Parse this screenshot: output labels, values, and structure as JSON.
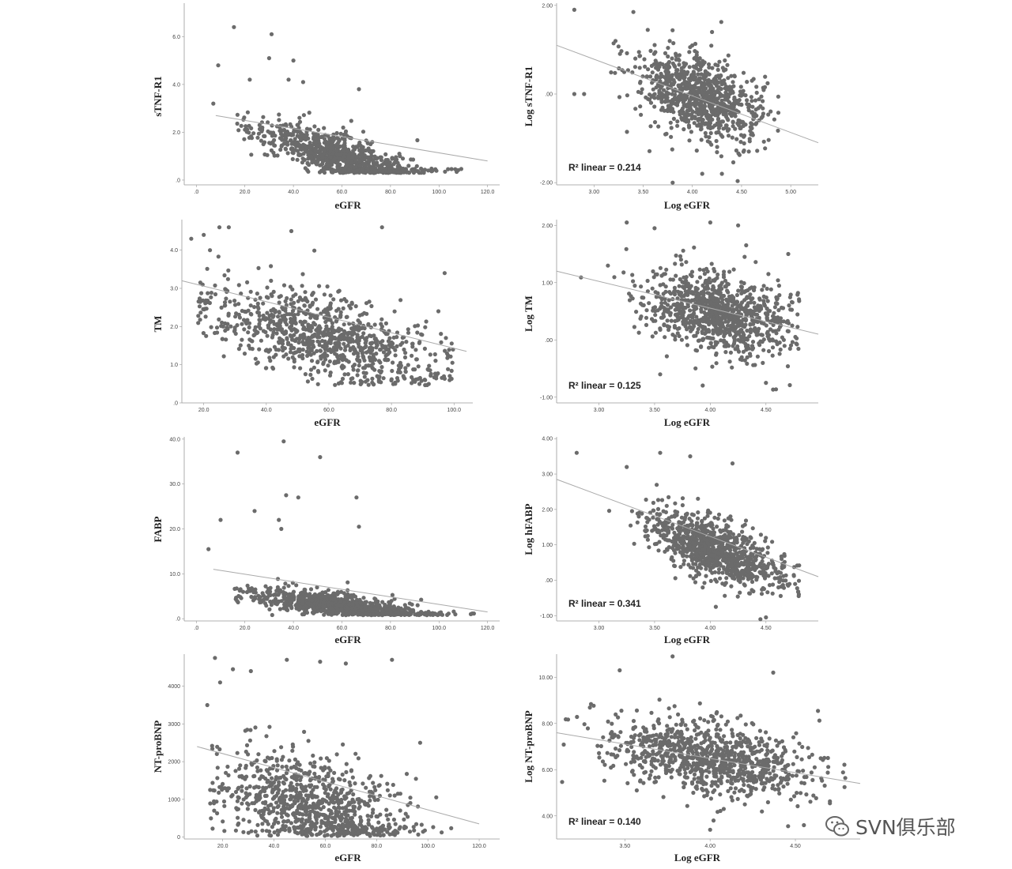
{
  "chart_data": [
    {
      "type": "scatter",
      "xlabel": "eGFR",
      "ylabel": "sTNF-R1",
      "xlim": [
        -5,
        125
      ],
      "ylim": [
        -0.2,
        7.4
      ],
      "xticks": [
        0,
        20,
        40,
        60,
        80,
        100,
        120
      ],
      "xtick_labels": [
        ".0",
        "20.0",
        "40.0",
        "60.0",
        "80.0",
        "100.0",
        "120.0"
      ],
      "yticks": [
        0,
        2,
        4,
        6
      ],
      "ytick_labels": [
        ".0",
        "2.0",
        "4.0",
        "6.0"
      ],
      "fit_line": {
        "x": [
          8,
          120
        ],
        "y": [
          2.7,
          0.8
        ]
      },
      "r2": "",
      "points": {
        "n": 900,
        "x_range": [
          15,
          110
        ],
        "x_mean": 60,
        "x_sd": 17,
        "y_intercept": 2.9,
        "y_slope": -0.033,
        "y_floor": 0.3,
        "y_noise": 0.45,
        "seed": 11
      },
      "outliers": [
        [
          15.5,
          6.4
        ],
        [
          31.0,
          6.1
        ],
        [
          30.0,
          5.1
        ],
        [
          40.0,
          5.0
        ],
        [
          9.0,
          4.8
        ],
        [
          38.0,
          4.2
        ],
        [
          44.0,
          4.1
        ],
        [
          22.0,
          4.2
        ],
        [
          67.0,
          3.8
        ],
        [
          7.0,
          3.2
        ]
      ]
    },
    {
      "type": "scatter",
      "xlabel": "Log eGFR",
      "ylabel": "Log sTNF-R1",
      "xlim": [
        2.62,
        5.28
      ],
      "ylim": [
        -2.05,
        2.05
      ],
      "xticks": [
        3.0,
        3.5,
        4.0,
        4.5,
        5.0
      ],
      "xtick_labels": [
        "3.00",
        "3.50",
        "4.00",
        "4.50",
        "5.00"
      ],
      "yticks": [
        -2,
        0,
        2
      ],
      "ytick_labels": [
        "-2.00",
        ".00",
        "2.00"
      ],
      "fit_line": {
        "x": [
          2.62,
          5.28
        ],
        "y": [
          1.1,
          -1.1
        ]
      },
      "r2": "R² linear = 0.214",
      "points": {
        "n": 900,
        "x_range": [
          3.0,
          4.9
        ],
        "x_mean": 4.1,
        "x_sd": 0.3,
        "y_intercept": 3.1,
        "y_slope": -0.78,
        "y_floor": -2.0,
        "y_noise": 0.45,
        "seed": 21
      },
      "outliers": [
        [
          2.8,
          1.9
        ],
        [
          3.4,
          1.85
        ],
        [
          2.8,
          0.0
        ],
        [
          2.9,
          0.0
        ],
        [
          3.8,
          -2.0
        ],
        [
          4.2,
          1.4
        ],
        [
          4.1,
          -1.8
        ],
        [
          4.3,
          -1.8
        ]
      ]
    },
    {
      "type": "scatter",
      "xlabel": "eGFR",
      "ylabel": "TM",
      "xlim": [
        13,
        106
      ],
      "ylim": [
        0,
        4.8
      ],
      "xticks": [
        20,
        40,
        60,
        80,
        100
      ],
      "xtick_labels": [
        "20.0",
        "40.0",
        "60.0",
        "80.0",
        "100.0"
      ],
      "yticks": [
        0,
        1,
        2,
        3,
        4
      ],
      "ytick_labels": [
        ".0",
        "1.0",
        "2.0",
        "3.0",
        "4.0"
      ],
      "fit_line": {
        "x": [
          13,
          104
        ],
        "y": [
          3.2,
          1.35
        ]
      },
      "r2": "",
      "points": {
        "n": 950,
        "x_range": [
          18,
          100
        ],
        "x_mean": 58,
        "x_sd": 19,
        "y_intercept": 2.9,
        "y_slope": -0.02,
        "y_floor": 0.45,
        "y_noise": 0.55,
        "seed": 31
      },
      "outliers": [
        [
          25,
          4.6
        ],
        [
          28,
          4.6
        ],
        [
          16,
          4.3
        ],
        [
          20,
          4.4
        ],
        [
          48,
          4.5
        ],
        [
          77,
          4.6
        ],
        [
          97,
          3.4
        ],
        [
          95,
          2.4
        ],
        [
          22,
          4.0
        ]
      ]
    },
    {
      "type": "scatter",
      "xlabel": "Log eGFR",
      "ylabel": "Log TM",
      "xlim": [
        2.62,
        4.97
      ],
      "ylim": [
        -1.1,
        2.1
      ],
      "xticks": [
        3.0,
        3.5,
        4.0,
        4.5
      ],
      "xtick_labels": [
        "3.00",
        "3.50",
        "4.00",
        "4.50"
      ],
      "yticks": [
        -1,
        0,
        1,
        2
      ],
      "ytick_labels": [
        "-1.00",
        ".00",
        "1.00",
        "2.00"
      ],
      "fit_line": {
        "x": [
          2.62,
          4.97
        ],
        "y": [
          1.2,
          0.1
        ]
      },
      "r2": "R² linear = 0.125",
      "points": {
        "n": 950,
        "x_range": [
          2.7,
          4.8
        ],
        "x_mean": 4.05,
        "x_sd": 0.32,
        "y_intercept": 2.3,
        "y_slope": -0.45,
        "y_floor": -0.9,
        "y_noise": 0.35,
        "seed": 41
      },
      "outliers": [
        [
          3.25,
          2.05
        ],
        [
          4.0,
          2.05
        ],
        [
          4.25,
          2.0
        ],
        [
          3.5,
          1.95
        ],
        [
          4.7,
          1.5
        ],
        [
          4.5,
          -0.75
        ],
        [
          3.55,
          -0.6
        ]
      ]
    },
    {
      "type": "scatter",
      "xlabel": "eGFR",
      "ylabel": "FABP",
      "xlim": [
        -5,
        125
      ],
      "ylim": [
        -0.5,
        40.5
      ],
      "xticks": [
        0,
        20,
        40,
        60,
        80,
        100,
        120
      ],
      "xtick_labels": [
        ".0",
        "20.0",
        "40.0",
        "60.0",
        "80.0",
        "100.0",
        "120.0"
      ],
      "yticks": [
        0,
        10,
        20,
        30,
        40
      ],
      "ytick_labels": [
        ".0",
        "10.0",
        "20.0",
        "30.0",
        "40.0"
      ],
      "fit_line": {
        "x": [
          7,
          120
        ],
        "y": [
          11,
          1.5
        ]
      },
      "r2": "",
      "points": {
        "n": 900,
        "x_range": [
          15,
          115
        ],
        "x_mean": 60,
        "x_sd": 18,
        "y_intercept": 7.0,
        "y_slope": -0.07,
        "y_floor": 0.8,
        "y_noise": 1.3,
        "seed": 51
      },
      "outliers": [
        [
          17,
          37
        ],
        [
          36,
          39.5
        ],
        [
          51,
          36
        ],
        [
          37,
          27.5
        ],
        [
          42,
          27
        ],
        [
          66,
          27
        ],
        [
          67,
          20.5
        ],
        [
          24,
          24
        ],
        [
          34,
          22
        ],
        [
          35,
          20
        ],
        [
          10,
          22
        ],
        [
          5,
          15.5
        ]
      ]
    },
    {
      "type": "scatter",
      "xlabel": "Log eGFR",
      "ylabel": "Log hFABP",
      "xlim": [
        2.62,
        4.97
      ],
      "ylim": [
        -1.15,
        4.05
      ],
      "xticks": [
        3.0,
        3.5,
        4.0,
        4.5
      ],
      "xtick_labels": [
        "3.00",
        "3.50",
        "4.00",
        "4.50"
      ],
      "yticks": [
        -1,
        0,
        1,
        2,
        3,
        4
      ],
      "ytick_labels": [
        "-1.00",
        ".00",
        "1.00",
        "2.00",
        "3.00",
        "4.00"
      ],
      "fit_line": {
        "x": [
          2.62,
          4.97
        ],
        "y": [
          2.85,
          0.1
        ]
      },
      "r2": "R² linear = 0.341",
      "points": {
        "n": 950,
        "x_range": [
          2.7,
          4.8
        ],
        "x_mean": 4.05,
        "x_sd": 0.3,
        "y_intercept": 5.7,
        "y_slope": -1.2,
        "y_floor": -0.5,
        "y_noise": 0.42,
        "seed": 61
      },
      "outliers": [
        [
          2.8,
          3.6
        ],
        [
          3.55,
          3.6
        ],
        [
          3.82,
          3.5
        ],
        [
          4.2,
          3.3
        ],
        [
          4.45,
          -1.1
        ],
        [
          4.5,
          -1.05
        ],
        [
          4.05,
          -0.75
        ],
        [
          3.25,
          3.2
        ]
      ]
    },
    {
      "type": "scatter",
      "xlabel": "eGFR",
      "ylabel": "NT-proBNP",
      "xlim": [
        5,
        128
      ],
      "ylim": [
        -50,
        4850
      ],
      "xticks": [
        20,
        40,
        60,
        80,
        100,
        120
      ],
      "xtick_labels": [
        "20.0",
        "40.0",
        "60.0",
        "80.0",
        "100.0",
        "120.0"
      ],
      "yticks": [
        0,
        1000,
        2000,
        3000,
        4000
      ],
      "ytick_labels": [
        "0",
        "1000",
        "2000",
        "3000",
        "4000"
      ],
      "fit_line": {
        "x": [
          10,
          120
        ],
        "y": [
          2400,
          350
        ]
      },
      "r2": "",
      "points": {
        "n": 900,
        "x_range": [
          15,
          118
        ],
        "x_mean": 55,
        "x_sd": 18,
        "y_intercept": 1800,
        "y_slope": -18,
        "y_floor": 30,
        "y_noise": 650,
        "seed": 71
      },
      "outliers": [
        [
          17,
          4750
        ],
        [
          24,
          4450
        ],
        [
          31,
          4400
        ],
        [
          45,
          4700
        ],
        [
          58,
          4650
        ],
        [
          68,
          4600
        ],
        [
          86,
          4700
        ],
        [
          19,
          4100
        ],
        [
          97,
          2500
        ],
        [
          14,
          3500
        ]
      ]
    },
    {
      "type": "scatter",
      "xlabel": "Log eGFR",
      "ylabel": "Log NT-proBNP",
      "xlim": [
        3.1,
        4.88
      ],
      "ylim": [
        3.0,
        11.0
      ],
      "xticks": [
        3.5,
        4.0,
        4.5
      ],
      "xtick_labels": [
        "3.50",
        "4.00",
        "4.50"
      ],
      "yticks": [
        4,
        6,
        8,
        10
      ],
      "ytick_labels": [
        "4.00",
        "6.00",
        "8.00",
        "10.00"
      ],
      "fit_line": {
        "x": [
          3.1,
          4.88
        ],
        "y": [
          7.6,
          5.4
        ]
      },
      "r2": "R² linear = 0.140",
      "points": {
        "n": 950,
        "x_range": [
          3.1,
          4.85
        ],
        "x_mean": 4.0,
        "x_sd": 0.3,
        "y_intercept": 11.3,
        "y_slope": -1.2,
        "y_floor": 3.5,
        "y_noise": 0.75,
        "seed": 81
      },
      "outliers": [
        [
          3.47,
          10.3
        ],
        [
          3.78,
          10.9
        ],
        [
          4.37,
          10.2
        ],
        [
          4.08,
          4.3
        ],
        [
          4.02,
          3.8
        ],
        [
          4.0,
          3.4
        ],
        [
          4.55,
          3.6
        ]
      ]
    }
  ],
  "watermark": {
    "text": "SVN俱乐部",
    "icon": "wechat-icon"
  },
  "colors": {
    "point": "#6b6b6b",
    "fit_line": "#aaaaaa",
    "axis": "#999999"
  }
}
